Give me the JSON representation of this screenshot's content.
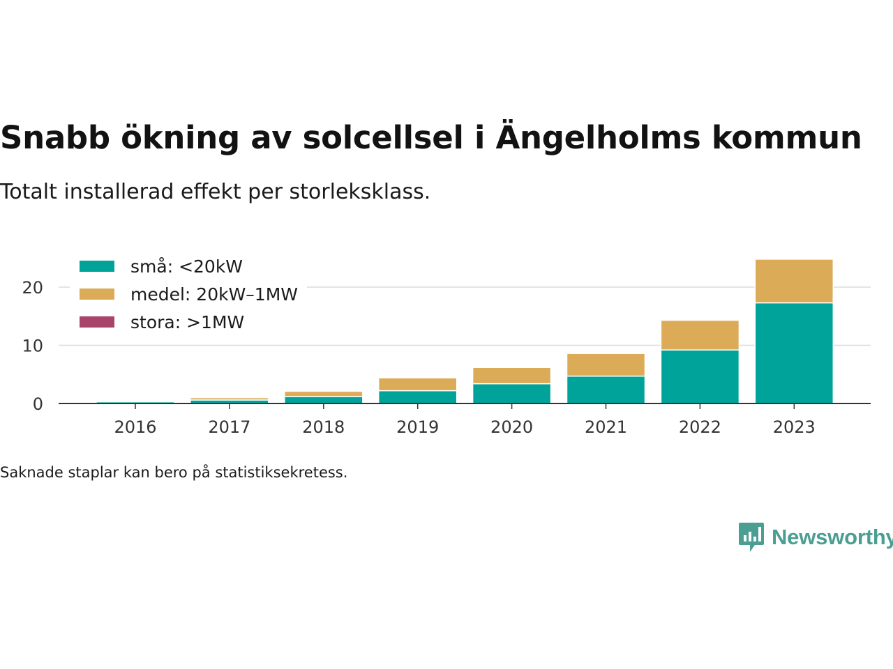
{
  "header": {
    "title": "Snabb ökning av solcellsel i Ängelholms kommun",
    "subtitle": "Totalt installerad effekt per storleksklass."
  },
  "footer": {
    "note": "Saknade staplar kan bero på statistiksekretess.",
    "logo_text": "Newsworthy",
    "logo_icon": "bar-chart-speech-bubble-icon"
  },
  "chart_data": {
    "type": "bar",
    "stacked": true,
    "categories": [
      "2016",
      "2017",
      "2018",
      "2019",
      "2020",
      "2021",
      "2022",
      "2023"
    ],
    "series": [
      {
        "name": "små: <20kW",
        "color": "#00a39a",
        "values": [
          0.3,
          0.6,
          1.2,
          2.2,
          3.4,
          4.7,
          9.2,
          17.3
        ]
      },
      {
        "name": "medel: 20kW–1MW",
        "color": "#dbab58",
        "values": [
          0.05,
          0.4,
          0.9,
          2.2,
          2.8,
          3.9,
          5.1,
          7.5
        ]
      },
      {
        "name": "stora: >1MW",
        "color": "#a8436a",
        "values": [
          0,
          0,
          0,
          0,
          0,
          0,
          0,
          0
        ]
      }
    ],
    "yticks": [
      0,
      10,
      20
    ],
    "ylim": [
      0,
      25
    ],
    "grid": true,
    "legend_position": "top-left"
  }
}
